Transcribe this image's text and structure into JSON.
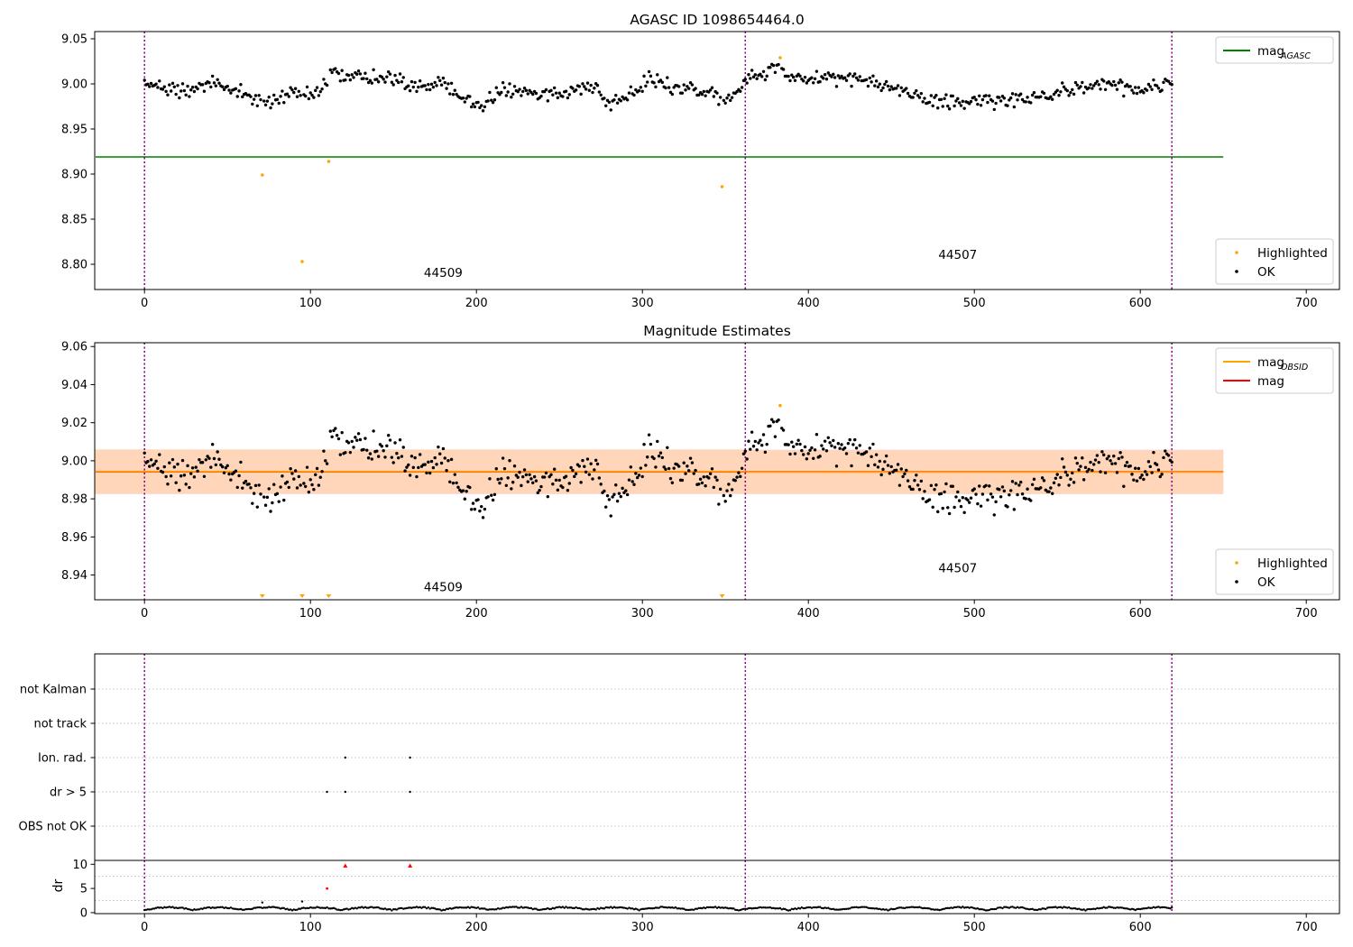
{
  "colors": {
    "ok": "#000000",
    "highlighted": "#ffa500",
    "agasc_line": "#008000",
    "mag_line": "#ff0000",
    "obsid_line": "#ffa500",
    "band_mag": "#ffc0cb",
    "band_obsid": "#ffd8b0",
    "obsid_boundary": "#800080"
  },
  "chart_data": [
    {
      "type": "scatter",
      "title": "AGASC ID 1098654464.0",
      "xlim": [
        -30,
        720
      ],
      "ylim": [
        8.772,
        9.058
      ],
      "xticks": [
        0,
        100,
        200,
        300,
        400,
        500,
        600,
        700
      ],
      "yticks": [
        8.8,
        8.85,
        8.9,
        8.95,
        9.0,
        9.05
      ],
      "ytick_labels": [
        "8.80",
        "8.85",
        "8.90",
        "8.95",
        "9.00",
        "9.05"
      ],
      "obsid_boundaries": [
        0,
        362,
        619
      ],
      "obsid_labels": [
        {
          "text": "44509",
          "x": 180,
          "y": 8.786
        },
        {
          "text": "44507",
          "x": 490,
          "y": 8.806
        }
      ],
      "hlines": [
        {
          "name": "mag_AGASC",
          "y": 8.919,
          "x_range": [
            -30,
            650
          ],
          "color": "agasc_line"
        }
      ],
      "legends": [
        {
          "position": "top-right",
          "entries": [
            {
              "label": "mag",
              "sub": "AGASC",
              "marker": "line",
              "color": "agasc_line"
            }
          ]
        },
        {
          "position": "bottom-right",
          "entries": [
            {
              "label": "Highlighted",
              "marker": "dot",
              "color": "highlighted"
            },
            {
              "label": "OK",
              "marker": "dot",
              "color": "ok"
            }
          ]
        }
      ],
      "series": [
        {
          "name": "OK",
          "color": "ok",
          "generator": "mag_trend",
          "x_range": [
            0,
            619
          ],
          "exclude": [
            71,
            95,
            111,
            348,
            383
          ]
        },
        {
          "name": "Highlighted",
          "color": "highlighted",
          "points": [
            [
              71,
              8.899
            ],
            [
              95,
              8.803
            ],
            [
              111,
              8.914
            ],
            [
              348,
              8.886
            ],
            [
              383,
              9.029
            ]
          ]
        }
      ]
    },
    {
      "type": "scatter",
      "title": "Magnitude Estimates",
      "xlim": [
        -30,
        720
      ],
      "ylim": [
        8.927,
        9.062
      ],
      "xticks": [
        0,
        100,
        200,
        300,
        400,
        500,
        600,
        700
      ],
      "yticks": [
        8.94,
        8.96,
        8.98,
        9.0,
        9.02,
        9.04,
        9.06
      ],
      "ytick_labels": [
        "8.94",
        "8.96",
        "8.98",
        "9.00",
        "9.02",
        "9.04",
        "9.06"
      ],
      "obsid_boundaries": [
        0,
        362,
        619
      ],
      "obsid_labels": [
        {
          "text": "44509",
          "x": 180,
          "y": 8.9315
        },
        {
          "text": "44507",
          "x": 490,
          "y": 8.9415
        }
      ],
      "bands": [
        {
          "y": [
            8.9825,
            9.0058
          ],
          "x_range": [
            -30,
            650
          ],
          "color": "band_mag"
        },
        {
          "y": [
            8.9828,
            9.006
          ],
          "x_range": [
            -30,
            362
          ],
          "color": "band_obsid"
        },
        {
          "y": [
            8.9826,
            9.0055
          ],
          "x_range": [
            362,
            650
          ],
          "color": "band_obsid"
        }
      ],
      "hlines": [
        {
          "name": "mag",
          "y": 8.9942,
          "x_range": [
            -30,
            650
          ],
          "color": "mag_line"
        },
        {
          "name": "mag_OBSID",
          "y": 8.9944,
          "x_range": [
            -30,
            362
          ],
          "color": "obsid_line"
        },
        {
          "name": "mag_OBSID",
          "y": 8.994,
          "x_range": [
            362,
            650
          ],
          "color": "obsid_line"
        }
      ],
      "legends": [
        {
          "position": "top-right",
          "entries": [
            {
              "label": "mag",
              "sub": "OBSID",
              "marker": "line",
              "color": "obsid_line"
            },
            {
              "label": "mag",
              "marker": "line",
              "color": "mag_line"
            }
          ]
        },
        {
          "position": "bottom-right",
          "entries": [
            {
              "label": "Highlighted",
              "marker": "dot",
              "color": "highlighted"
            },
            {
              "label": "OK",
              "marker": "dot",
              "color": "ok"
            }
          ]
        }
      ],
      "series": [
        {
          "name": "OK",
          "color": "ok",
          "generator": "mag_trend",
          "x_range": [
            0,
            619
          ],
          "exclude": [
            71,
            95,
            111,
            348,
            383
          ]
        },
        {
          "name": "Highlighted",
          "color": "highlighted",
          "points": [
            [
              383,
              9.029
            ]
          ],
          "offscale_markers_x": [
            71,
            95,
            111,
            348
          ]
        }
      ]
    },
    {
      "type": "scatter",
      "title": "",
      "xlim": [
        -30,
        720
      ],
      "categories": [
        "OBS not OK",
        "dr > 5",
        "Ion. rad.",
        "not track",
        "not Kalman"
      ],
      "obsid_boundaries": [
        0,
        362,
        619
      ],
      "series": [
        {
          "name": "dr > 5",
          "x": [
            110,
            121,
            160
          ]
        },
        {
          "name": "Ion. rad.",
          "x": [
            121,
            160
          ]
        }
      ]
    },
    {
      "type": "scatter",
      "title": "",
      "ylabel": "dr",
      "xlim": [
        -30,
        720
      ],
      "ylim": [
        0,
        10.5
      ],
      "xticks": [
        0,
        100,
        200,
        300,
        400,
        500,
        600,
        700
      ],
      "yticks": [
        0,
        5,
        10
      ],
      "ytick_labels": [
        "0",
        "5",
        "10"
      ],
      "obsid_boundaries": [
        0,
        362,
        619
      ],
      "series": [
        {
          "name": "dr",
          "color": "ok",
          "generator": "dr_trend",
          "x_range": [
            0,
            619
          ],
          "outliers": [
            [
              71,
              2.1
            ],
            [
              95,
              2.3
            ]
          ]
        },
        {
          "name": "dr > 5",
          "color": "mag_line",
          "points": [
            [
              110,
              5.0
            ]
          ]
        },
        {
          "name": "dr clipped",
          "color": "mag_line",
          "triangle_up_x": [
            121,
            160
          ],
          "y": 9.7
        }
      ]
    }
  ]
}
